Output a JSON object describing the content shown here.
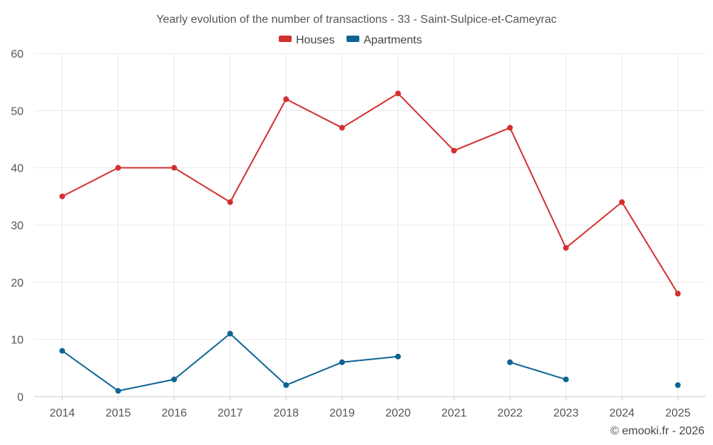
{
  "chart_data": {
    "type": "line",
    "title": "Yearly evolution of the number of transactions - 33 - Saint-Sulpice-et-Cameyrac",
    "categories": [
      "2014",
      "2015",
      "2016",
      "2017",
      "2018",
      "2019",
      "2020",
      "2021",
      "2022",
      "2023",
      "2024",
      "2025"
    ],
    "series": [
      {
        "name": "Houses",
        "color": "#d32f2f",
        "values": [
          35,
          40,
          40,
          34,
          52,
          47,
          53,
          43,
          47,
          26,
          34,
          18
        ]
      },
      {
        "name": "Apartments",
        "color": "#0d6496",
        "values": [
          8,
          1,
          3,
          11,
          2,
          6,
          7,
          null,
          6,
          3,
          null,
          2
        ]
      }
    ],
    "ylim": [
      0,
      60
    ],
    "yticks": [
      0,
      10,
      20,
      30,
      40,
      50,
      60
    ],
    "xlabel": "",
    "ylabel": "",
    "grid": true,
    "legend_position": "top-center"
  },
  "credit": "© emooki.fr - 2026"
}
